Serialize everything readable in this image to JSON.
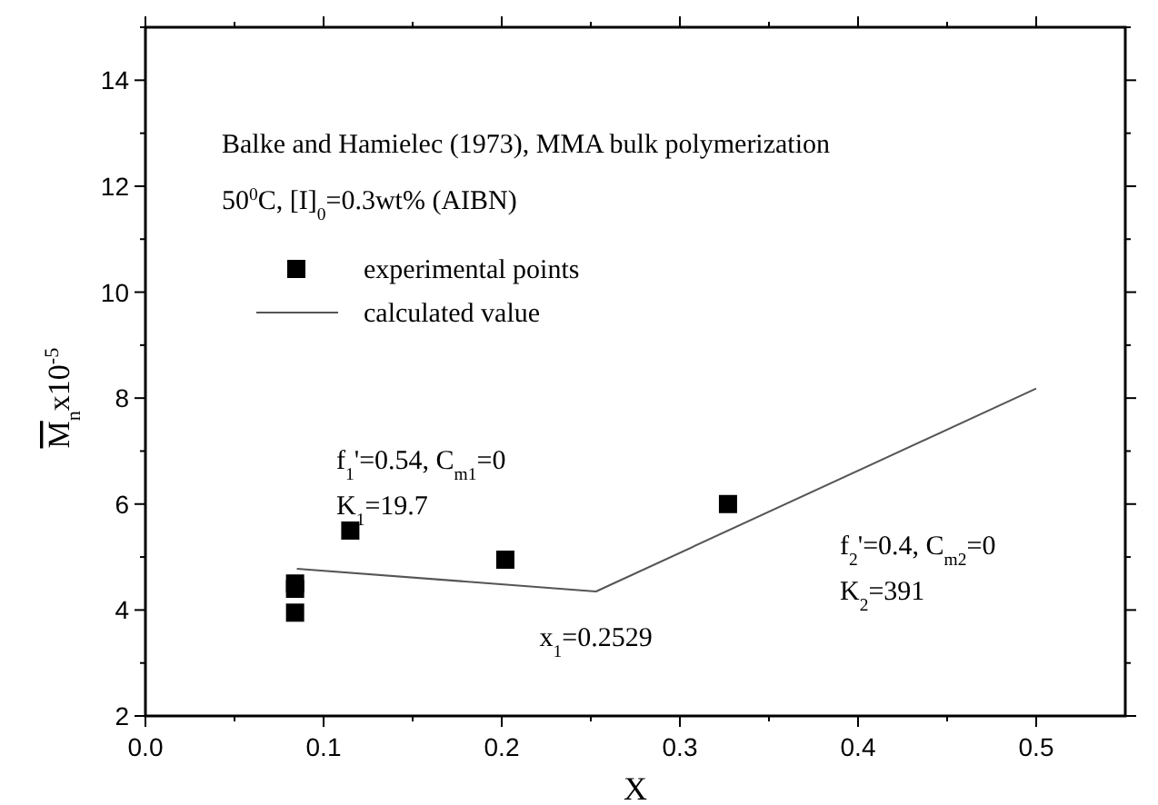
{
  "chart_data": {
    "type": "scatter",
    "xlabel": "X",
    "ylabel": "M$_{n}$x10$^{-5}$",
    "xlim": [
      0,
      0.55
    ],
    "ylim": [
      2,
      15
    ],
    "xticks": [
      {
        "value": 0,
        "label": "0.0"
      },
      0.1,
      0.2,
      0.3,
      0.4,
      0.5
    ],
    "yticks": [
      2,
      4,
      6,
      8,
      10,
      12,
      14
    ],
    "legend": "top left",
    "grid": false,
    "series": [
      {
        "name": "experimental points",
        "type": "scatter",
        "marker": "square",
        "color": "#000000",
        "x": [
          0.084,
          0.084,
          0.084,
          0.115,
          0.202,
          0.327
        ],
        "values": [
          4.5,
          4.4,
          3.95,
          5.5,
          4.95,
          6.0
        ]
      },
      {
        "name": "calculated value",
        "type": "line",
        "marker": "none",
        "line_style": "solid",
        "color": "#555555",
        "x": [
          0.085,
          0.2529,
          0.5
        ],
        "values": [
          4.78,
          4.35,
          8.18
        ]
      }
    ],
    "annotations": [
      "Balke and Hamielec (1973), MMA bulk polymerization",
      "50$^{0}$C,  [I]$_{0}$=0.3wt% (AIBN)",
      "f$_{1}$'=0.54,  C$_{m1}$=0",
      "K$_{1}$=19.7",
      "f$_{2}$'=0.4,  C$_{m2}$=0",
      "K$_{2}$=391",
      {
        "text": "x$_{1}$=0.2529",
        "x": 0.2529,
        "y": 4.35
      }
    ]
  }
}
